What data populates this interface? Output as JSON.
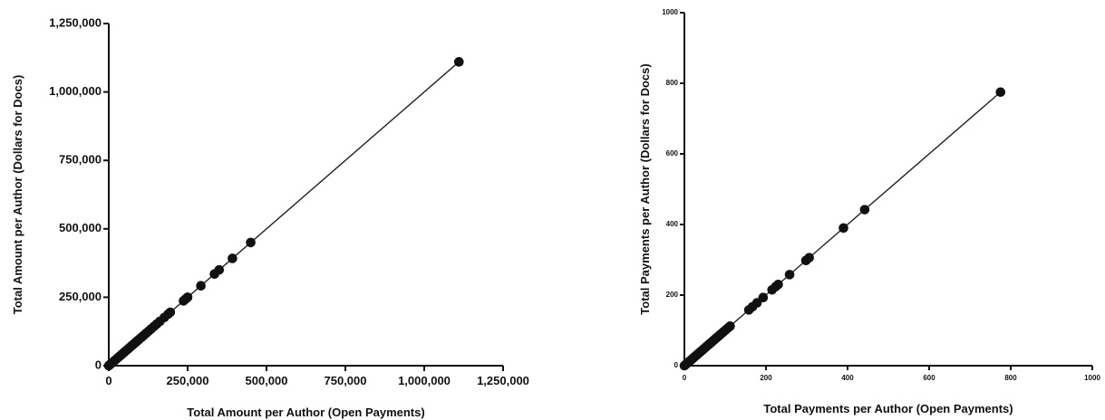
{
  "chart_data": [
    {
      "type": "scatter",
      "xlabel": "Total Amount per Author (Open Payments)",
      "ylabel": "Total Amount per Author (Dollars for Docs)",
      "xlim": [
        0,
        1250000
      ],
      "ylim": [
        0,
        1250000
      ],
      "x_ticks": [
        0,
        250000,
        500000,
        750000,
        1000000,
        1250000
      ],
      "y_ticks": [
        0,
        250000,
        500000,
        750000,
        1000000,
        1250000
      ],
      "x_tick_labels": [
        "0",
        "250,000",
        "500,000",
        "750,000",
        "1,000,000",
        "1,250,000"
      ],
      "y_tick_labels": [
        "0",
        "250,000",
        "500,000",
        "750,000",
        "1,000,000",
        "1,250,000"
      ],
      "grid": false,
      "legend": "none",
      "fit_line": {
        "from": [
          0,
          0
        ],
        "to": [
          1110000,
          1110000
        ]
      },
      "points": [
        {
          "x": 0,
          "y": 0
        },
        {
          "x": 3000,
          "y": 3000
        },
        {
          "x": 7000,
          "y": 7000
        },
        {
          "x": 12000,
          "y": 12000
        },
        {
          "x": 18000,
          "y": 18000
        },
        {
          "x": 24000,
          "y": 24000
        },
        {
          "x": 30000,
          "y": 30000
        },
        {
          "x": 36000,
          "y": 36000
        },
        {
          "x": 42000,
          "y": 42000
        },
        {
          "x": 48000,
          "y": 48000
        },
        {
          "x": 54000,
          "y": 54000
        },
        {
          "x": 60000,
          "y": 60000
        },
        {
          "x": 66000,
          "y": 66000
        },
        {
          "x": 72000,
          "y": 72000
        },
        {
          "x": 78000,
          "y": 78000
        },
        {
          "x": 84000,
          "y": 84000
        },
        {
          "x": 90000,
          "y": 90000
        },
        {
          "x": 96000,
          "y": 96000
        },
        {
          "x": 103000,
          "y": 103000
        },
        {
          "x": 110000,
          "y": 110000
        },
        {
          "x": 118000,
          "y": 118000
        },
        {
          "x": 126000,
          "y": 126000
        },
        {
          "x": 134000,
          "y": 134000
        },
        {
          "x": 143000,
          "y": 143000
        },
        {
          "x": 152000,
          "y": 152000
        },
        {
          "x": 162000,
          "y": 162000
        },
        {
          "x": 176000,
          "y": 176000
        },
        {
          "x": 188000,
          "y": 188000
        },
        {
          "x": 195000,
          "y": 195000
        },
        {
          "x": 237000,
          "y": 237000
        },
        {
          "x": 244000,
          "y": 244000
        },
        {
          "x": 250000,
          "y": 250000
        },
        {
          "x": 292000,
          "y": 292000
        },
        {
          "x": 335000,
          "y": 335000
        },
        {
          "x": 350000,
          "y": 350000
        },
        {
          "x": 392000,
          "y": 392000
        },
        {
          "x": 450000,
          "y": 450000
        },
        {
          "x": 1110000,
          "y": 1110000
        }
      ]
    },
    {
      "type": "scatter",
      "xlabel": "Total Payments per Author (Open Payments)",
      "ylabel": "Total Payments per Author (Dollars for Docs)",
      "xlim": [
        0,
        1000
      ],
      "ylim": [
        0,
        1000
      ],
      "x_ticks": [
        0,
        200,
        400,
        600,
        800,
        1000
      ],
      "y_ticks": [
        0,
        200,
        400,
        600,
        800,
        1000
      ],
      "x_tick_labels": [
        "0",
        "200",
        "400",
        "600",
        "800",
        "1000"
      ],
      "y_tick_labels": [
        "0",
        "200",
        "400",
        "600",
        "800",
        "1000"
      ],
      "grid": false,
      "legend": "none",
      "fit_line": {
        "from": [
          0,
          0
        ],
        "to": [
          775,
          775
        ]
      },
      "points": [
        {
          "x": 0,
          "y": 0
        },
        {
          "x": 4,
          "y": 4
        },
        {
          "x": 8,
          "y": 8
        },
        {
          "x": 12,
          "y": 12
        },
        {
          "x": 16,
          "y": 16
        },
        {
          "x": 20,
          "y": 20
        },
        {
          "x": 24,
          "y": 24
        },
        {
          "x": 28,
          "y": 28
        },
        {
          "x": 32,
          "y": 32
        },
        {
          "x": 36,
          "y": 36
        },
        {
          "x": 40,
          "y": 40
        },
        {
          "x": 44,
          "y": 44
        },
        {
          "x": 48,
          "y": 48
        },
        {
          "x": 52,
          "y": 52
        },
        {
          "x": 56,
          "y": 56
        },
        {
          "x": 60,
          "y": 60
        },
        {
          "x": 64,
          "y": 64
        },
        {
          "x": 68,
          "y": 68
        },
        {
          "x": 72,
          "y": 72
        },
        {
          "x": 76,
          "y": 76
        },
        {
          "x": 80,
          "y": 80
        },
        {
          "x": 84,
          "y": 84
        },
        {
          "x": 88,
          "y": 88
        },
        {
          "x": 92,
          "y": 92
        },
        {
          "x": 96,
          "y": 96
        },
        {
          "x": 101,
          "y": 101
        },
        {
          "x": 107,
          "y": 107
        },
        {
          "x": 112,
          "y": 112
        },
        {
          "x": 158,
          "y": 158
        },
        {
          "x": 167,
          "y": 167
        },
        {
          "x": 178,
          "y": 178
        },
        {
          "x": 193,
          "y": 193
        },
        {
          "x": 215,
          "y": 215
        },
        {
          "x": 224,
          "y": 224
        },
        {
          "x": 230,
          "y": 230
        },
        {
          "x": 258,
          "y": 258
        },
        {
          "x": 298,
          "y": 298
        },
        {
          "x": 306,
          "y": 306
        },
        {
          "x": 390,
          "y": 390
        },
        {
          "x": 442,
          "y": 442
        },
        {
          "x": 775,
          "y": 775
        }
      ]
    }
  ]
}
